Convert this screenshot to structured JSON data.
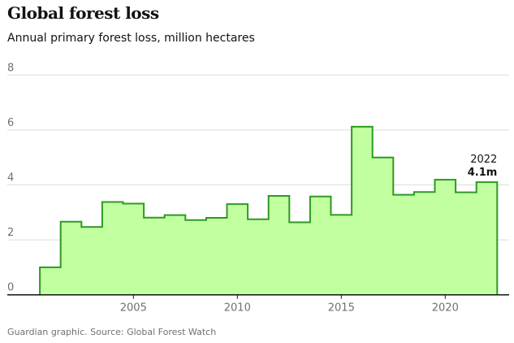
{
  "chart_data": {
    "type": "area",
    "style": "step",
    "title": "Global forest loss",
    "subtitle": "Annual primary forest loss, million hectares",
    "source": "Guardian graphic. Source: Global Forest Watch",
    "x": [
      2001,
      2002,
      2003,
      2004,
      2005,
      2006,
      2007,
      2008,
      2009,
      2010,
      2011,
      2012,
      2013,
      2014,
      2015,
      2016,
      2017,
      2018,
      2019,
      2020,
      2021,
      2022
    ],
    "values": [
      1.0,
      2.66,
      2.47,
      3.38,
      3.32,
      2.81,
      2.9,
      2.72,
      2.8,
      3.3,
      2.75,
      3.6,
      2.64,
      3.58,
      2.91,
      6.12,
      5.0,
      3.64,
      3.74,
      4.19,
      3.73,
      4.1
    ],
    "xticks": [
      "2005",
      "2010",
      "2015",
      "2020"
    ],
    "yticks": [
      "0",
      "2",
      "4",
      "6",
      "8"
    ],
    "ylim": [
      0,
      8
    ],
    "grid": true,
    "annotation": {
      "year": "2022",
      "value": "4.1m"
    },
    "colors": {
      "fill": "#c1ffa1",
      "line": "#2e9a1f",
      "grid": "#dcdcdc",
      "axis": "#121212"
    }
  }
}
